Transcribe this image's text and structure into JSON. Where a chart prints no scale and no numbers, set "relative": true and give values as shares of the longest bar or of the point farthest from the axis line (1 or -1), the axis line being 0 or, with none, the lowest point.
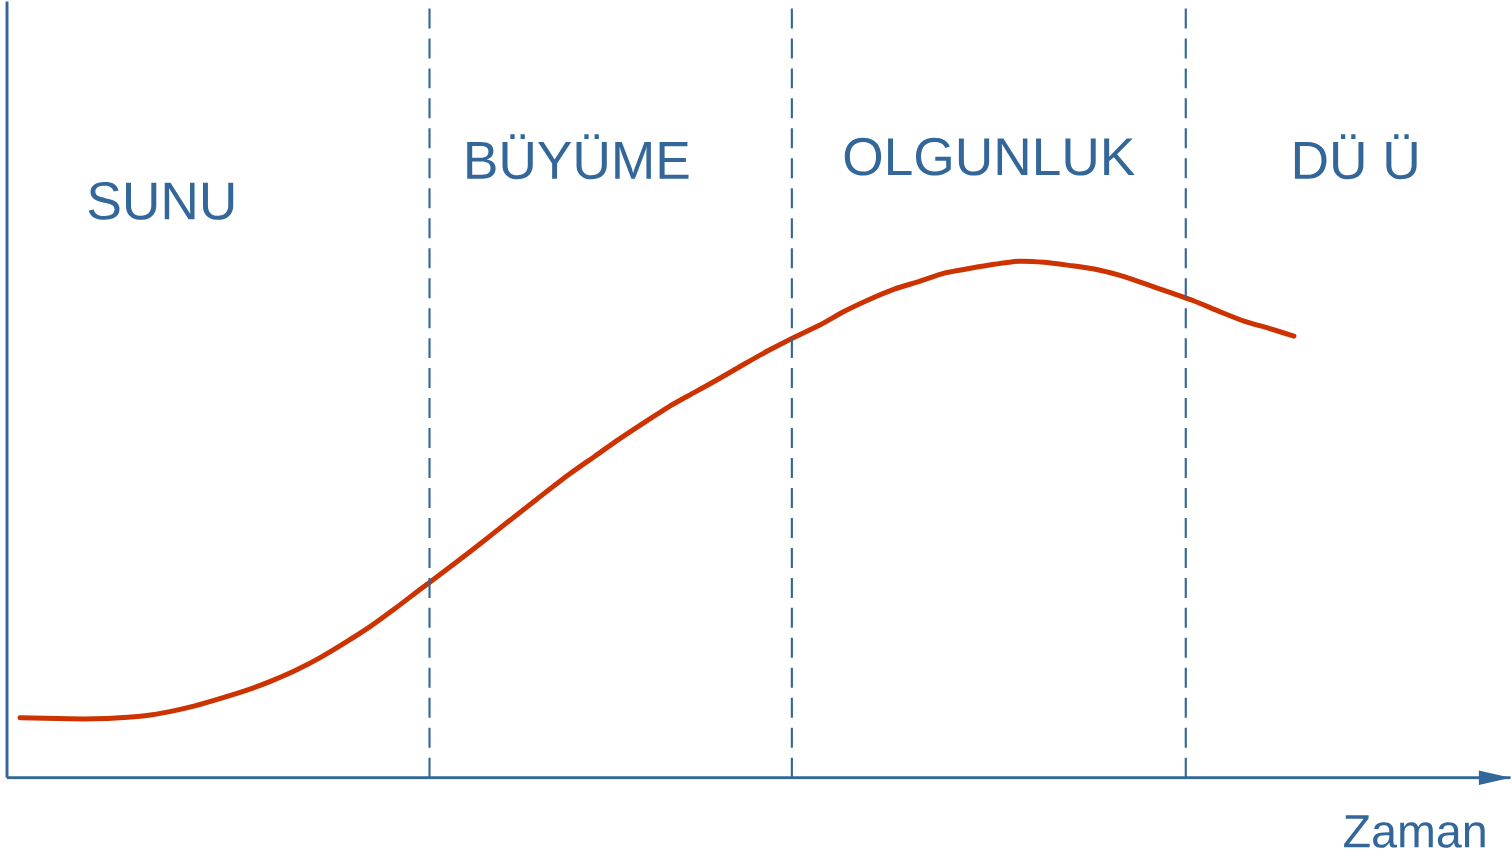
{
  "chart_data": {
    "type": "line",
    "relative": true,
    "xlabel": "Zaman",
    "categories": [
      null,
      null,
      null,
      null,
      null,
      null,
      null,
      null,
      null,
      null,
      null,
      null,
      null,
      null,
      null,
      null,
      null,
      null,
      null,
      null,
      null,
      null,
      null,
      null,
      null,
      null,
      null,
      null,
      null,
      null,
      null,
      null,
      null,
      null,
      null,
      null,
      null,
      null,
      null,
      null,
      null,
      null,
      null,
      null,
      null,
      null,
      null,
      null,
      null,
      null,
      null,
      null
    ],
    "series": [
      {
        "color": "#cc3300",
        "values": [
          0.116,
          0.115,
          0.114,
          0.114,
          0.116,
          0.12,
          0.128,
          0.139,
          0.153,
          0.168,
          0.186,
          0.207,
          0.232,
          0.261,
          0.292,
          0.327,
          0.364,
          0.4,
          0.437,
          0.475,
          0.513,
          0.551,
          0.588,
          0.622,
          0.656,
          0.688,
          0.719,
          0.746,
          0.773,
          0.801,
          0.828,
          0.853,
          0.876,
          0.903,
          0.926,
          0.946,
          0.961,
          0.977,
          0.986,
          0.994,
          1,
          0.998,
          0.992,
          0.985,
          0.973,
          0.957,
          0.94,
          0.923,
          0.903,
          0.884,
          0.87,
          0.855
        ]
      }
    ],
    "annotations": [
      "SUNU",
      "BÜYÜME",
      "OLGUNLUK",
      "DÜ Ü"
    ]
  }
}
